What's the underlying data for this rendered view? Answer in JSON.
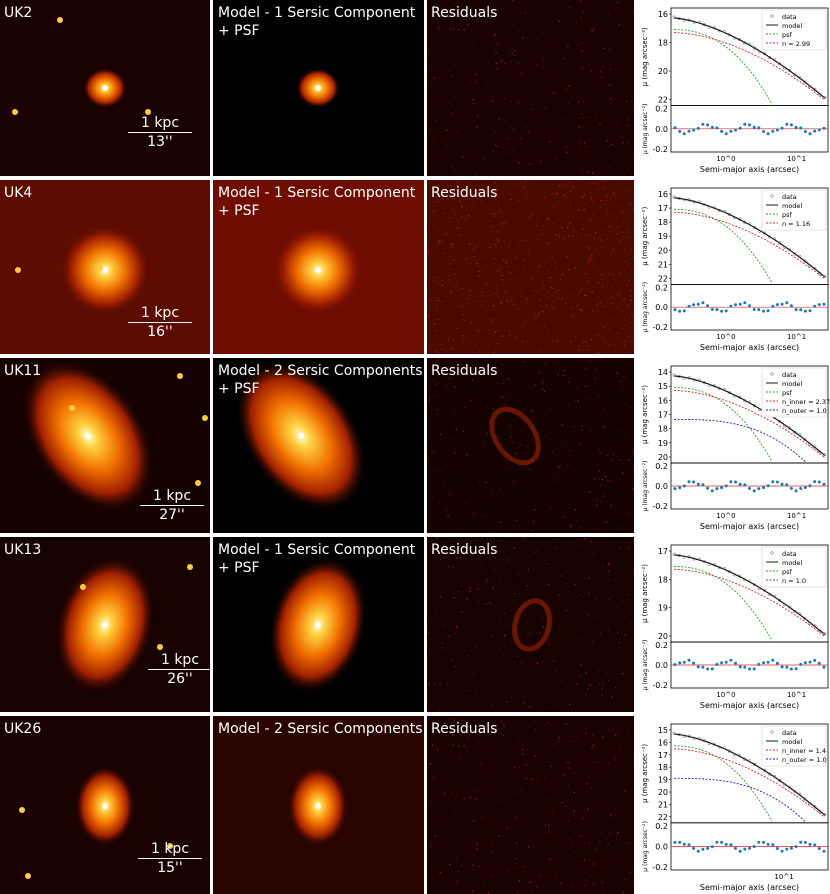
{
  "figure": {
    "rows": [
      {
        "galaxy_label": "UK2",
        "scale_top": "1 kpc",
        "scale_bottom": "13''",
        "model_line1": "Model - 1 Sersic Component",
        "model_line2": "+ PSF",
        "residual_label": "Residuals",
        "bg_color": "#1a0200",
        "model_bg": "#000000",
        "residual_bg": "#1a0200",
        "legend": [
          "data",
          "model",
          "psf",
          "n = 2.99"
        ],
        "y_ticks_top": [
          "16",
          "18",
          "20",
          "22"
        ],
        "y_ticks_bottom": [
          "0.2",
          "0.0",
          "-0.2"
        ],
        "x_ticks": [
          "10^0",
          "10^1"
        ]
      },
      {
        "galaxy_label": "UK4",
        "scale_top": "1 kpc",
        "scale_bottom": "16''",
        "model_line1": "Model - 1 Sersic Component",
        "model_line2": "+ PSF",
        "residual_label": "Residuals",
        "bg_color": "#5c0c00",
        "model_bg": "#6e0d00",
        "residual_bg": "#4a0a00",
        "legend": [
          "data",
          "model",
          "psf",
          "n = 1.16"
        ],
        "y_ticks_top": [
          "16",
          "17",
          "18",
          "19",
          "20",
          "21",
          "22"
        ],
        "y_ticks_bottom": [
          "0.2",
          "0.0",
          "-0.2"
        ],
        "x_ticks": [
          "10^0",
          "10^1"
        ]
      },
      {
        "galaxy_label": "UK11",
        "scale_top": "1 kpc",
        "scale_bottom": "27''",
        "model_line1": "Model - 2 Sersic Components",
        "model_line2": "+ PSF",
        "residual_label": "Residuals",
        "bg_color": "#140100",
        "model_bg": "#000000",
        "residual_bg": "#140100",
        "legend": [
          "data",
          "model",
          "psf",
          "n_inner = 2.37",
          "n_outer = 1.0"
        ],
        "y_ticks_top": [
          "14",
          "15",
          "16",
          "17",
          "18",
          "19",
          "20"
        ],
        "y_ticks_bottom": [
          "0.2",
          "0.0",
          "-0.2"
        ],
        "x_ticks": [
          "10^0",
          "10^1"
        ]
      },
      {
        "galaxy_label": "UK13",
        "scale_top": "1 kpc",
        "scale_bottom": "26''",
        "model_line1": "Model - 1 Sersic Component",
        "model_line2": "+ PSF",
        "residual_label": "Residuals",
        "bg_color": "#180200",
        "model_bg": "#000000",
        "residual_bg": "#180200",
        "legend": [
          "data",
          "model",
          "psf",
          "n = 1.0"
        ],
        "y_ticks_top": [
          "17",
          "18",
          "19",
          "20"
        ],
        "y_ticks_bottom": [
          "0.2",
          "0.0",
          "-0.2"
        ],
        "x_ticks": [
          "10^0",
          "10^1"
        ]
      },
      {
        "galaxy_label": "UK26",
        "scale_top": "1 kpc",
        "scale_bottom": "15''",
        "model_line1": "Model - 2 Sersic Components",
        "model_line2": "",
        "residual_label": "Residuals",
        "bg_color": "#1a0200",
        "model_bg": "#2a0500",
        "residual_bg": "#1a0200",
        "legend": [
          "data",
          "model",
          "n_inner = 1.4",
          "n_outer = 1.0"
        ],
        "y_ticks_top": [
          "15",
          "16",
          "17",
          "18",
          "19",
          "20",
          "21",
          "22"
        ],
        "y_ticks_bottom": [
          "0.2",
          "0.0",
          "-0.2"
        ],
        "x_ticks": [
          "10^1"
        ]
      }
    ],
    "plot_labels": {
      "y_top": "μ (mag arcsec⁻²)",
      "y_bottom": "μ (mag arcsec⁻²)",
      "x": "Semi-major axis (arcsec)"
    },
    "colors": {
      "data": "#1f77b4",
      "model": "#000000",
      "psf": "#2ca02c",
      "sersic": "#d62728",
      "outer": "#1f1fd6"
    }
  }
}
